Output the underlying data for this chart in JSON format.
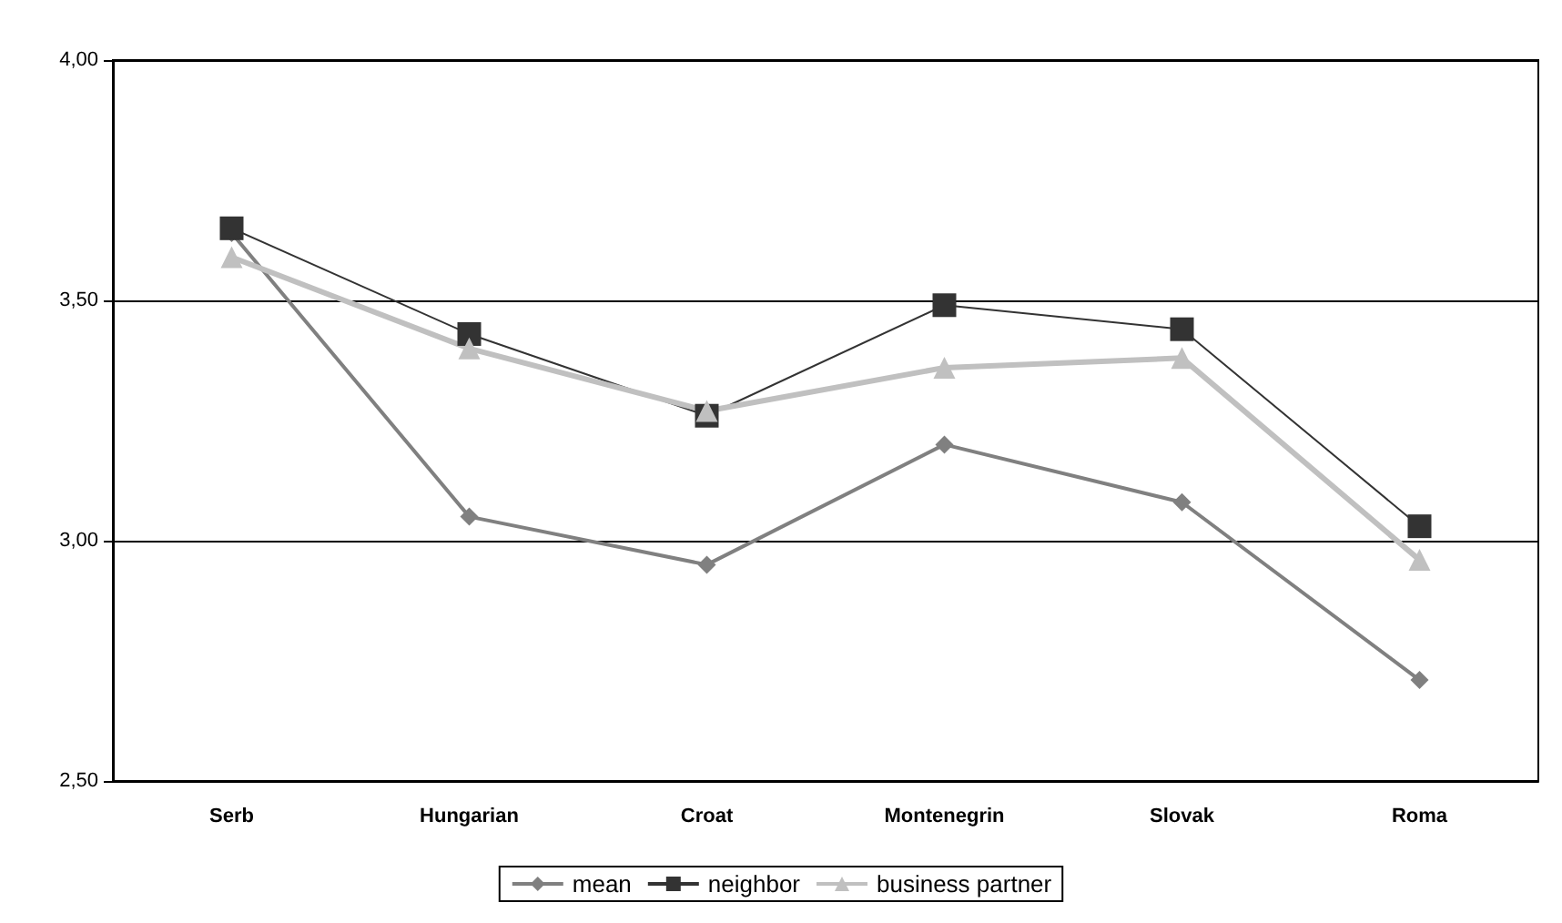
{
  "chart_data": {
    "type": "line",
    "categories": [
      "Serb",
      "Hungarian",
      "Croat",
      "Montenegrin",
      "Slovak",
      "Roma"
    ],
    "series": [
      {
        "name": "mean",
        "color": "#808080",
        "marker": "diamond",
        "values": [
          3.64,
          3.05,
          2.95,
          3.2,
          3.08,
          2.71
        ]
      },
      {
        "name": "neighbor",
        "color": "#333333",
        "marker": "square",
        "values": [
          3.65,
          3.43,
          3.26,
          3.49,
          3.44,
          3.03
        ]
      },
      {
        "name": "business partner",
        "color": "#c0c0c0",
        "marker": "triangle",
        "values": [
          3.59,
          3.4,
          3.27,
          3.36,
          3.38,
          2.96
        ]
      }
    ],
    "ylim": [
      2.5,
      4
    ],
    "yticks": [
      {
        "value": 2.5,
        "label": "2,50"
      },
      {
        "value": 3,
        "label": "3,00"
      },
      {
        "value": 3.5,
        "label": "3,50"
      },
      {
        "value": 4,
        "label": "4,00"
      }
    ],
    "grid": "y",
    "legend": "bottom"
  }
}
